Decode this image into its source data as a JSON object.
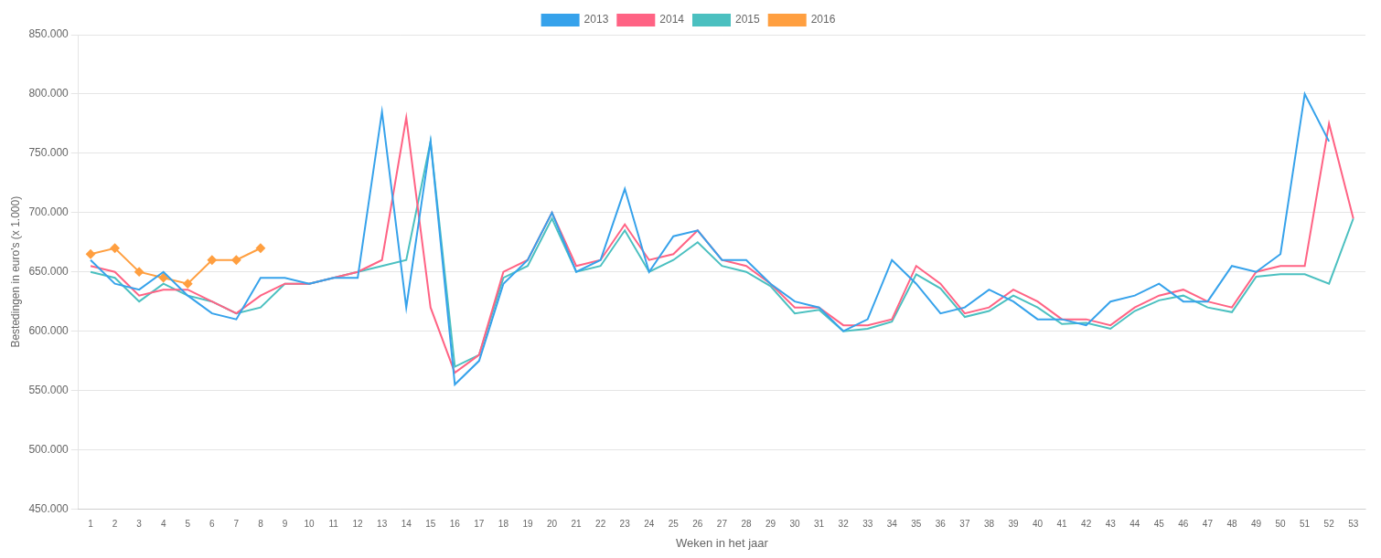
{
  "chart_data": {
    "type": "line",
    "xlabel": "Weken in het jaar",
    "ylabel": "Bestedingen in euro's (x 1.000)",
    "x": [
      1,
      2,
      3,
      4,
      5,
      6,
      7,
      8,
      9,
      10,
      11,
      12,
      13,
      14,
      15,
      16,
      17,
      18,
      19,
      20,
      21,
      22,
      23,
      24,
      25,
      26,
      27,
      28,
      29,
      30,
      31,
      32,
      33,
      34,
      35,
      36,
      37,
      38,
      39,
      40,
      41,
      42,
      43,
      44,
      45,
      46,
      47,
      48,
      49,
      50,
      51,
      52,
      53
    ],
    "xlim": [
      0.5,
      53.5
    ],
    "xticks": [
      1,
      2,
      3,
      4,
      5,
      6,
      7,
      8,
      9,
      10,
      11,
      12,
      13,
      14,
      15,
      16,
      17,
      18,
      19,
      20,
      21,
      22,
      23,
      24,
      25,
      26,
      27,
      28,
      29,
      30,
      31,
      32,
      33,
      34,
      35,
      36,
      37,
      38,
      39,
      40,
      41,
      42,
      43,
      44,
      45,
      46,
      47,
      48,
      49,
      50,
      51,
      52,
      53
    ],
    "ylim": [
      450000,
      850000
    ],
    "yticks": [
      {
        "value": 450000,
        "label": "450.000"
      },
      {
        "value": 500000,
        "label": "500.000"
      },
      {
        "value": 550000,
        "label": "550.000"
      },
      {
        "value": 600000,
        "label": "600.000"
      },
      {
        "value": 650000,
        "label": "650.000"
      },
      {
        "value": 700000,
        "label": "700.000"
      },
      {
        "value": 750000,
        "label": "750.000"
      },
      {
        "value": 800000,
        "label": "800.000"
      },
      {
        "value": 850000,
        "label": "850.000"
      }
    ],
    "grid": "y",
    "legend": "top",
    "series": [
      {
        "name": "2013",
        "marker": "none",
        "values": [
          660000,
          640000,
          635000,
          650000,
          630000,
          615000,
          610000,
          645000,
          645000,
          640000,
          645000,
          645000,
          785000,
          620000,
          760000,
          555000,
          575000,
          640000,
          660000,
          700000,
          650000,
          660000,
          720000,
          650000,
          680000,
          685000,
          660000,
          660000,
          640000,
          625000,
          620000,
          600000,
          610000,
          660000,
          640000,
          615000,
          620000,
          635000,
          625000,
          610000,
          610000,
          605000,
          625000,
          630000,
          640000,
          625000,
          625000,
          655000,
          650000,
          665000,
          800000,
          760000,
          null
        ]
      },
      {
        "name": "2014",
        "marker": "none",
        "values": [
          655000,
          650000,
          630000,
          635000,
          635000,
          625000,
          615000,
          630000,
          640000,
          640000,
          645000,
          650000,
          660000,
          780000,
          620000,
          565000,
          580000,
          650000,
          660000,
          700000,
          655000,
          660000,
          690000,
          660000,
          665000,
          685000,
          660000,
          655000,
          640000,
          620000,
          620000,
          605000,
          605000,
          610000,
          655000,
          640000,
          615000,
          620000,
          635000,
          625000,
          610000,
          610000,
          605000,
          620000,
          630000,
          635000,
          625000,
          620000,
          650000,
          655000,
          655000,
          775000,
          695000
        ]
      },
      {
        "name": "2015",
        "marker": "none",
        "values": [
          650000,
          645000,
          625000,
          640000,
          630000,
          625000,
          615000,
          620000,
          640000,
          640000,
          645000,
          650000,
          655000,
          660000,
          760000,
          570000,
          580000,
          645000,
          655000,
          695000,
          650000,
          655000,
          685000,
          650000,
          660000,
          675000,
          655000,
          650000,
          638000,
          615000,
          618000,
          600000,
          602000,
          608000,
          648000,
          636000,
          612000,
          617000,
          630000,
          620000,
          606000,
          607000,
          602000,
          617000,
          626000,
          630000,
          620000,
          616000,
          646000,
          648000,
          648000,
          640000,
          695000
        ]
      },
      {
        "name": "2016",
        "marker": "diamond",
        "values": [
          665000,
          670000,
          650000,
          645000,
          640000,
          660000,
          660000,
          670000,
          null,
          null,
          null,
          null,
          null,
          null,
          null,
          null,
          null,
          null,
          null,
          null,
          null,
          null,
          null,
          null,
          null,
          null,
          null,
          null,
          null,
          null,
          null,
          null,
          null,
          null,
          null,
          null,
          null,
          null,
          null,
          null,
          null,
          null,
          null,
          null,
          null,
          null,
          null,
          null,
          null,
          null,
          null,
          null,
          null
        ]
      }
    ]
  }
}
